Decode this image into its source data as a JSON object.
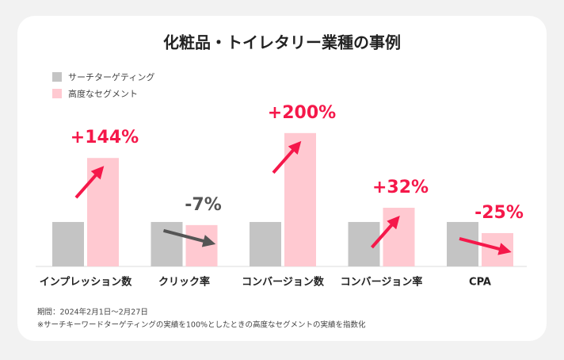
{
  "chart_data": {
    "type": "bar",
    "title": "化粧品・トイレタリー業種の事例",
    "categories": [
      "インプレッション数",
      "クリック率",
      "コンバージョン数",
      "コンバージョン率",
      "CPA"
    ],
    "series": [
      {
        "name": "サーチターゲティング",
        "color": "#c4c4c4",
        "values": [
          100,
          100,
          100,
          100,
          100
        ]
      },
      {
        "name": "高度なセグメント",
        "color": "#ffc9d1",
        "values": [
          244,
          93,
          300,
          132,
          75
        ]
      }
    ],
    "annotations": {
      "values": [
        144,
        -7,
        200,
        32,
        -25
      ],
      "value_labels": [
        "+144%",
        "-7%",
        "+200%",
        "+32%",
        "-25%"
      ],
      "colors": [
        "#f5184a",
        "#555555",
        "#f5184a",
        "#f5184a",
        "#f5184a"
      ]
    },
    "ylim": [
      0,
      330
    ],
    "notes": [
      "期間：2024年2月1日〜2月27日",
      "※サーチキーワードターゲティングの実績を100%としたときの高度なセグメントの実績を指数化"
    ]
  }
}
